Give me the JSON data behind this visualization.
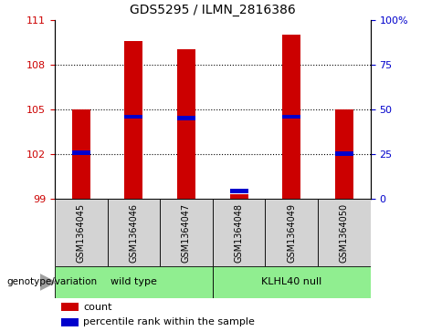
{
  "title": "GDS5295 / ILMN_2816386",
  "samples": [
    "GSM1364045",
    "GSM1364046",
    "GSM1364047",
    "GSM1364048",
    "GSM1364049",
    "GSM1364050"
  ],
  "count_values": [
    105.0,
    109.6,
    109.0,
    99.3,
    110.0,
    105.0
  ],
  "percentile_values": [
    102.1,
    104.5,
    104.4,
    99.5,
    104.5,
    102.0
  ],
  "ymin": 99,
  "ymax": 111,
  "yticks_left": [
    99,
    102,
    105,
    108,
    111
  ],
  "right_tick_positions": [
    99,
    102,
    105,
    108,
    111
  ],
  "right_tick_labels": [
    "0",
    "25",
    "50",
    "75",
    "100%"
  ],
  "groups": [
    {
      "label": "wild type",
      "indices": [
        0,
        1,
        2
      ],
      "color": "#90ee90"
    },
    {
      "label": "KLHL40 null",
      "indices": [
        3,
        4,
        5
      ],
      "color": "#90ee90"
    }
  ],
  "bar_color": "#cc0000",
  "percentile_color": "#0000cc",
  "bar_width": 0.35,
  "grid_yticks": [
    102,
    105,
    108
  ],
  "tick_label_color_left": "#cc0000",
  "tick_label_color_right": "#0000cc",
  "genotype_label": "genotype/variation",
  "legend_count": "count",
  "legend_percentile": "percentile rank within the sample"
}
